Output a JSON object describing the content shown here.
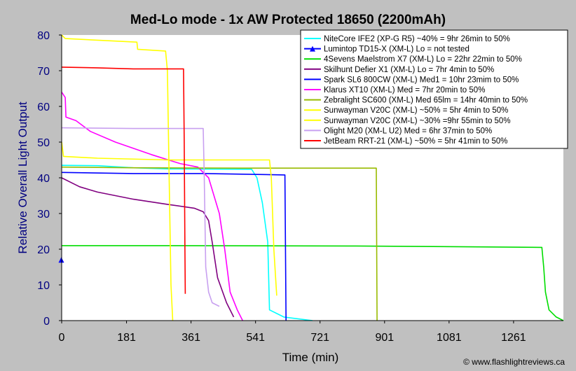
{
  "chart_data": {
    "type": "line",
    "title": "Med-Lo mode - 1x AW Protected 18650 (2200mAh)",
    "xlabel": "Time (min)",
    "ylabel": "Relative Overall Light Output",
    "credit": "© www.flashlightreviews.ca",
    "xlim": [
      0,
      1400
    ],
    "ylim": [
      0,
      80
    ],
    "xticks": [
      0,
      181,
      361,
      541,
      721,
      901,
      1081,
      1261
    ],
    "yticks": [
      0,
      10,
      20,
      30,
      40,
      50,
      60,
      70,
      80
    ],
    "grid": false,
    "legend_position": "top-right",
    "series": [
      {
        "name": "NiteCore IFE2 (XP-G R5) ~40% = 9hr 26min to 50%",
        "color": "#00ffff",
        "points": [
          [
            0,
            43.5
          ],
          [
            100,
            43.4
          ],
          [
            200,
            42.8
          ],
          [
            300,
            42.5
          ],
          [
            530,
            42.4
          ],
          [
            545,
            40
          ],
          [
            560,
            33
          ],
          [
            575,
            22
          ],
          [
            580,
            3
          ],
          [
            620,
            1
          ],
          [
            700,
            0
          ]
        ]
      },
      {
        "name": "Lumintop TD15-X (XM-L) Lo = not tested",
        "color": "#0000ff",
        "marker": "triangle",
        "points": [
          [
            0,
            17
          ]
        ]
      },
      {
        "name": "4Sevens Maelstrom X7 (XM-L) Lo = 22hr 22min to 50%",
        "color": "#00dd00",
        "points": [
          [
            0,
            21
          ],
          [
            300,
            21
          ],
          [
            800,
            20.9
          ],
          [
            1100,
            20.7
          ],
          [
            1340,
            20.5
          ],
          [
            1345,
            15
          ],
          [
            1350,
            8
          ],
          [
            1360,
            3
          ],
          [
            1380,
            1
          ],
          [
            1400,
            0
          ]
        ]
      },
      {
        "name": "Skilhunt Defier X1 (XM-L) Lo = 7hr 4min to 50%",
        "color": "#800080",
        "points": [
          [
            0,
            40
          ],
          [
            50,
            37.5
          ],
          [
            100,
            36
          ],
          [
            200,
            34
          ],
          [
            300,
            32.5
          ],
          [
            370,
            31.5
          ],
          [
            395,
            30.5
          ],
          [
            410,
            28
          ],
          [
            420,
            22
          ],
          [
            435,
            12
          ],
          [
            460,
            5
          ],
          [
            480,
            1
          ]
        ]
      },
      {
        "name": "Spark SL6 800CW (XM-L) Med1 = 10hr 23mim to 50%",
        "color": "#0000ff",
        "points": [
          [
            0,
            41.5
          ],
          [
            200,
            41.2
          ],
          [
            400,
            41.2
          ],
          [
            623,
            40.8
          ],
          [
            626,
            0
          ]
        ]
      },
      {
        "name": "Klarus XT10 (XM-L) Med = 7hr 20min to 50%",
        "color": "#ff00ff",
        "points": [
          [
            0,
            64
          ],
          [
            10,
            62.5
          ],
          [
            12,
            57
          ],
          [
            40,
            56
          ],
          [
            80,
            53
          ],
          [
            150,
            50
          ],
          [
            250,
            46.5
          ],
          [
            330,
            44
          ],
          [
            380,
            43
          ],
          [
            410,
            40
          ],
          [
            440,
            30
          ],
          [
            455,
            20
          ],
          [
            470,
            8
          ],
          [
            490,
            3
          ],
          [
            500,
            1
          ],
          [
            505,
            0
          ]
        ]
      },
      {
        "name": "Zebralight SC600 (XM-L) Med 65lm = 14hr 40min to 50%",
        "color": "#99bb00",
        "points": [
          [
            0,
            43
          ],
          [
            200,
            42.8
          ],
          [
            500,
            42.7
          ],
          [
            878,
            42.7
          ],
          [
            880,
            0
          ]
        ]
      },
      {
        "name": "Sunwayman V20C (XM-L) ~50% = 5hr 4min to 50%",
        "color": "#ffff00",
        "points": [
          [
            0,
            80
          ],
          [
            10,
            79
          ],
          [
            210,
            78
          ],
          [
            212,
            76
          ],
          [
            290,
            75.5
          ],
          [
            295,
            70
          ],
          [
            300,
            40
          ],
          [
            305,
            10
          ],
          [
            310,
            0
          ]
        ]
      },
      {
        "name": "Sunwayman V20C (XM-L) ~30% =9hr 55min to 50%",
        "color": "#ffff00",
        "points": [
          [
            0,
            50
          ],
          [
            5,
            46
          ],
          [
            100,
            45.5
          ],
          [
            300,
            45
          ],
          [
            580,
            45
          ],
          [
            585,
            40
          ],
          [
            592,
            20
          ],
          [
            600,
            7
          ]
        ]
      },
      {
        "name": "Olight M20 (XM-L U2) Med = 6hr 37min to 50%",
        "color": "#c8a0f0",
        "points": [
          [
            0,
            54
          ],
          [
            200,
            53.8
          ],
          [
            395,
            53.8
          ],
          [
            398,
            40
          ],
          [
            402,
            15
          ],
          [
            410,
            8
          ],
          [
            420,
            5
          ],
          [
            440,
            4
          ]
        ]
      },
      {
        "name": "JetBeam RRT-21 (XM-L) ~50% = 5hr 41min to 50%",
        "color": "#ff0000",
        "points": [
          [
            0,
            71
          ],
          [
            100,
            70.8
          ],
          [
            200,
            70.5
          ],
          [
            340,
            70.5
          ],
          [
            342,
            50
          ],
          [
            344,
            20
          ],
          [
            345,
            7.5
          ]
        ]
      }
    ]
  }
}
